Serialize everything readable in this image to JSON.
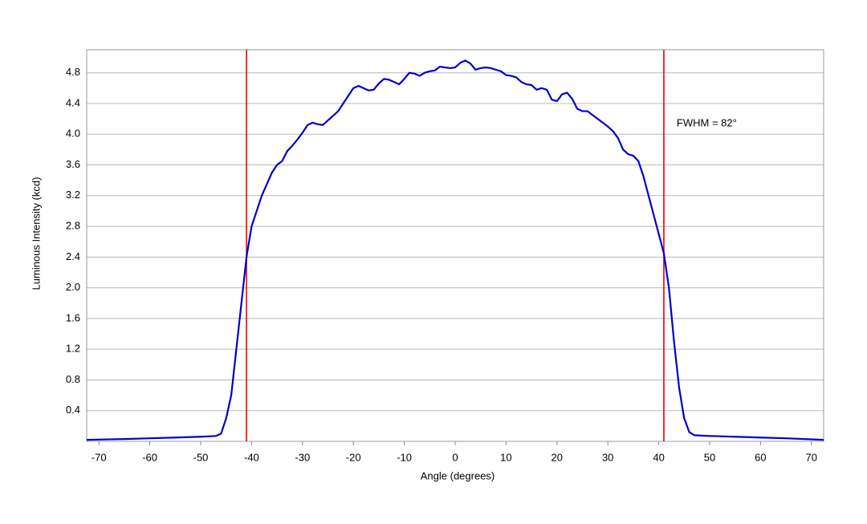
{
  "chart_data": {
    "type": "line",
    "x_label": "Angle (degrees)",
    "y_label": "Luminous Intensity (kcd)",
    "annotation": "FWHM = 82°",
    "x": [
      -72.4,
      -65,
      -60,
      -55,
      -50,
      -47,
      -46,
      -45,
      -44,
      -43,
      -42,
      -41,
      -40,
      -39,
      -38,
      -37,
      -36,
      -35,
      -34,
      -33,
      -32,
      -31,
      -30,
      -29,
      -28,
      -27,
      -26,
      -25,
      -24,
      -23,
      -22,
      -21,
      -20,
      -19,
      -18,
      -17,
      -16,
      -15,
      -14,
      -13,
      -12,
      -11,
      -10,
      -9,
      -8,
      -7,
      -6,
      -5,
      -4,
      -3,
      -2,
      -1,
      0,
      1,
      2,
      3,
      4,
      5,
      6,
      7,
      8,
      9,
      10,
      11,
      12,
      13,
      14,
      15,
      16,
      17,
      18,
      19,
      20,
      21,
      22,
      23,
      24,
      25,
      26,
      27,
      28,
      29,
      30,
      31,
      32,
      33,
      34,
      35,
      36,
      37,
      38,
      39,
      40,
      41,
      42,
      43,
      44,
      45,
      46,
      47,
      50,
      55,
      60,
      65,
      72.4
    ],
    "series": [
      {
        "color": "#0000cc",
        "values": [
          0.02,
          0.03,
          0.04,
          0.05,
          0.06,
          0.07,
          0.1,
          0.3,
          0.6,
          1.2,
          1.8,
          2.4,
          2.8,
          3.0,
          3.2,
          3.35,
          3.5,
          3.6,
          3.65,
          3.78,
          3.85,
          3.93,
          4.02,
          4.12,
          4.15,
          4.13,
          4.12,
          4.18,
          4.24,
          4.3,
          4.4,
          4.5,
          4.6,
          4.63,
          4.6,
          4.57,
          4.58,
          4.66,
          4.72,
          4.71,
          4.68,
          4.65,
          4.72,
          4.8,
          4.79,
          4.76,
          4.8,
          4.82,
          4.83,
          4.88,
          4.87,
          4.86,
          4.87,
          4.93,
          4.96,
          4.92,
          4.84,
          4.86,
          4.87,
          4.86,
          4.84,
          4.82,
          4.77,
          4.76,
          4.74,
          4.68,
          4.65,
          4.64,
          4.58,
          4.6,
          4.58,
          4.45,
          4.43,
          4.52,
          4.54,
          4.46,
          4.33,
          4.3,
          4.3,
          4.25,
          4.2,
          4.15,
          4.1,
          4.04,
          3.95,
          3.8,
          3.74,
          3.72,
          3.65,
          3.45,
          3.2,
          2.95,
          2.7,
          2.45,
          2.0,
          1.3,
          0.7,
          0.3,
          0.12,
          0.08,
          0.07,
          0.06,
          0.05,
          0.04,
          0.02
        ]
      }
    ],
    "vlines": [
      -41,
      41
    ],
    "vline_color": "#ee0000",
    "xlim": [
      -72.4,
      72.4
    ],
    "xticks": [
      -70,
      -60,
      -50,
      -40,
      -30,
      -20,
      -10,
      0,
      10,
      20,
      30,
      40,
      50,
      60,
      70
    ],
    "ylim": [
      0,
      5.1
    ],
    "yticks": [
      0.4,
      0.8,
      1.2,
      1.6,
      {
        "value": 2.0,
        "label": "2.0"
      },
      2.4,
      2.8,
      3.2,
      3.6,
      {
        "value": 4.0,
        "label": "4.0"
      },
      4.4,
      4.8
    ],
    "grid": true
  }
}
